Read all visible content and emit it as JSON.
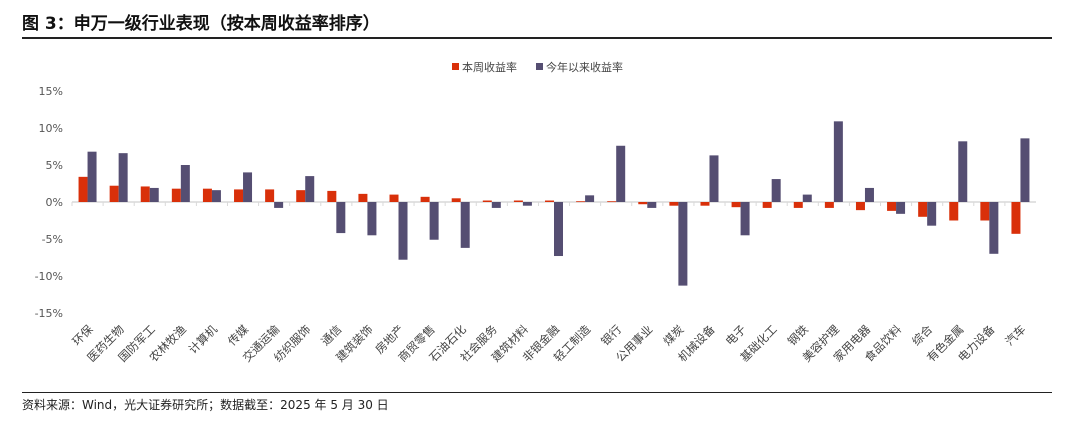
{
  "title": "图 3：申万一级行业表现（按本周收益率排序）",
  "source": "资料来源：Wind，光大证券研究所；数据截至：2025 年 5 月 30 日",
  "chart_data": {
    "type": "bar",
    "categories": [
      "环保",
      "医药生物",
      "国防军工",
      "农林牧渔",
      "计算机",
      "传媒",
      "交通运输",
      "纺织服饰",
      "通信",
      "建筑装饰",
      "房地产",
      "商贸零售",
      "石油石化",
      "社会服务",
      "建筑材料",
      "非银金融",
      "轻工制造",
      "银行",
      "公用事业",
      "煤炭",
      "机械设备",
      "电子",
      "基础化工",
      "钢铁",
      "美容护理",
      "家用电器",
      "食品饮料",
      "综合",
      "有色金属",
      "电力设备",
      "汽车"
    ],
    "series": [
      {
        "name": "本周收益率",
        "color": "#d9300a",
        "values": [
          3.4,
          2.2,
          2.1,
          1.8,
          1.8,
          1.7,
          1.7,
          1.6,
          1.5,
          1.1,
          1.0,
          0.7,
          0.5,
          0.2,
          0.2,
          0.2,
          0.1,
          0.1,
          -0.3,
          -0.5,
          -0.5,
          -0.7,
          -0.8,
          -0.8,
          -0.8,
          -1.1,
          -1.2,
          -2.0,
          -2.5,
          -2.5,
          -4.3
        ]
      },
      {
        "name": "今年以来收益率",
        "color": "#554e72",
        "values": [
          6.8,
          6.6,
          1.9,
          5.0,
          1.6,
          4.0,
          -0.8,
          3.5,
          -4.2,
          -4.5,
          -7.8,
          -5.1,
          -6.2,
          -0.8,
          -0.5,
          -7.3,
          0.9,
          7.6,
          -0.8,
          -11.3,
          6.3,
          -4.5,
          3.1,
          1.0,
          10.9,
          1.9,
          -1.6,
          -3.2,
          8.2,
          -7.0,
          8.6
        ]
      }
    ],
    "ylim": [
      -15,
      15
    ],
    "yticks": [
      15,
      10,
      5,
      0,
      -5,
      -10,
      -15
    ],
    "ytick_labels": [
      "15%",
      "10%",
      "5%",
      "0%",
      "-5%",
      "-10%",
      "-15%"
    ],
    "legend_position": "top",
    "grid": false
  }
}
